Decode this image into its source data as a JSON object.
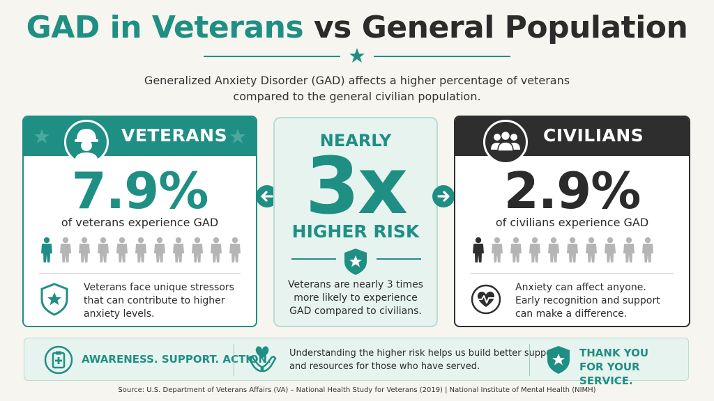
{
  "title": {
    "part1": "GAD in Veterans",
    "part2": "vs General Population"
  },
  "intro": {
    "line1": "Generalized Anxiety Disorder (GAD) affects a higher percentage of veterans",
    "line2": "compared to the general civilian population."
  },
  "veterans": {
    "header": "VETERANS",
    "percent": "7.9%",
    "label": "of veterans experience GAD",
    "note_lines": [
      "Veterans face unique stressors",
      "that can contribute to higher",
      "anxiety levels."
    ],
    "highlighted_people": 1,
    "total_people": 11,
    "icon": "shield-star-icon"
  },
  "civilians": {
    "header": "CIVILIANS",
    "percent": "2.9%",
    "label": "of civilians experience GAD",
    "note_lines": [
      "Anxiety can affect anyone.",
      "Early recognition and support",
      "can make a difference."
    ],
    "highlighted_people": 1,
    "total_people": 10,
    "icon": "heart-pulse-icon"
  },
  "center": {
    "nearly": "NEARLY",
    "multiplier": "3x",
    "higher_risk": "HIGHER RISK",
    "note_lines": [
      "Veterans are nearly 3 times",
      "more likely to experience",
      "GAD compared to civilians."
    ]
  },
  "band": {
    "awareness": "AWARENESS. SUPPORT. ACTION.",
    "text_lines": [
      "Understanding the higher risk helps us build better support",
      "and resources for those who have served."
    ],
    "thanks_lines": [
      "THANK YOU",
      "FOR YOUR SERVICE."
    ]
  },
  "source": "Source: U.S. Department of Veterans Affairs (VA) – National Health Study for Veterans (2019) | National Institute of Mental Health (NIMH)",
  "colors": {
    "teal": "#1f8f84",
    "dark": "#2e2e2e",
    "muted_person": "#b5b5b5",
    "band_bg": "#e7f3ef"
  }
}
